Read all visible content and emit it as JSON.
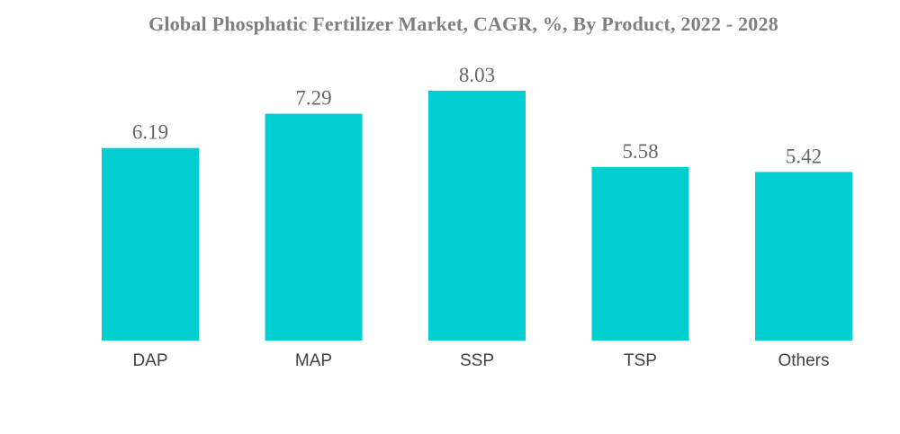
{
  "chart_data": {
    "type": "bar",
    "title": "Global Phosphatic Fertilizer Market, CAGR, %, By Product, 2022 - 2028",
    "categories": [
      "DAP",
      "MAP",
      "SSP",
      "TSP",
      "Others"
    ],
    "values": [
      6.19,
      7.29,
      8.03,
      5.58,
      5.42
    ],
    "value_labels": [
      "6.19",
      "7.29",
      "8.03",
      "5.58",
      "5.42"
    ],
    "xlabel": "",
    "ylabel": "",
    "ylim": [
      0,
      8.03
    ],
    "grid": false,
    "legend": "none",
    "colors": {
      "bar": "#00CED1"
    }
  }
}
